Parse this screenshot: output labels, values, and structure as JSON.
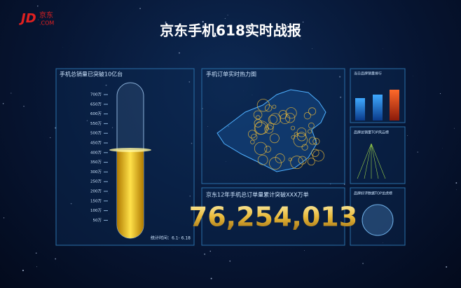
{
  "logo": {
    "brand": "JD",
    "name": "京东",
    "domain": ".COM"
  },
  "header": {
    "title": "京东手机618实时战报"
  },
  "panels": [
    {
      "title": "手机总销量已突破10亿台",
      "scale": [
        "700万",
        "650万",
        "600万",
        "550万",
        "500万",
        "450万",
        "400万",
        "350万",
        "300万",
        "250万",
        "200万",
        "150万",
        "100万",
        "50万"
      ],
      "footer": "统计时间：6.1- 6.18"
    },
    {
      "title": "手机订单实时热力图"
    },
    {
      "title": "京东12年手机总订单量累计突破XXX万单",
      "counter": "76,254,013"
    },
    {
      "title": "当日品牌销量排行"
    },
    {
      "title": "品牌总销量TOP风云榜"
    },
    {
      "title": "品牌好评数据TOP龙虎榜"
    }
  ]
}
